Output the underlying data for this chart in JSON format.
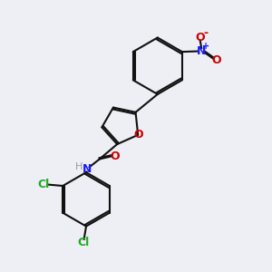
{
  "bg_color": "#eeeef5",
  "bond_color": "#111111",
  "bond_width": 1.5,
  "atom_colors": {
    "O": "#cc0000",
    "N_amide": "#1a1aff",
    "N_nitro": "#1a1aff",
    "Cl": "#22aa22",
    "H": "#999999"
  },
  "font_size": 9,
  "font_size_super": 6.5
}
